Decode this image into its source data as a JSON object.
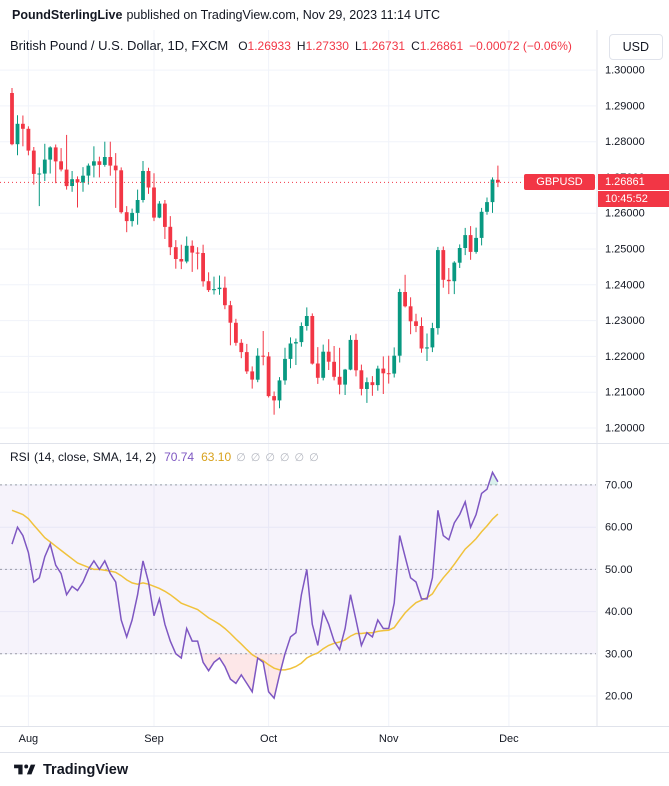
{
  "header": {
    "publisher": "PoundSterlingLive",
    "suffix": "published on TradingView.com, Nov 29, 2023 11:14 UTC"
  },
  "symbol_bar": {
    "title": "British Pound / U.S. Dollar, 1D, FXCM",
    "ohlc": {
      "o_label": "O",
      "o_value": "1.26933",
      "h_label": "H",
      "h_value": "1.27330",
      "l_label": "L",
      "l_value": "1.26731",
      "c_label": "C",
      "c_value": "1.26861",
      "change": "−0.00072 (−0.06%)"
    },
    "currency_button": "USD"
  },
  "price_axis": {
    "symbol_tag": "GBPUSD",
    "current_price": "1.26861",
    "countdown": "10:45:52"
  },
  "rsi_bar": {
    "title": "RSI",
    "params": "(14, close, SMA, 14, 2)",
    "rsi_value": "70.74",
    "ma_value": "63.10",
    "empty_values": [
      "∅",
      "∅",
      "∅",
      "∅",
      "∅",
      "∅"
    ]
  },
  "time_axis": {
    "labels": [
      {
        "text": "Aug",
        "i": 3
      },
      {
        "text": "Sep",
        "i": 26
      },
      {
        "text": "Oct",
        "i": 47
      },
      {
        "text": "Nov",
        "i": 69
      },
      {
        "text": "Dec",
        "i": 91
      }
    ]
  },
  "footer": {
    "brand": "TradingView"
  },
  "colors": {
    "up": "#089981",
    "down": "#f23645",
    "rsi": "#7e57c2",
    "rsi_ma": "#f0c23c",
    "band_line": "#787b86",
    "grid": "#f0f3fa",
    "axis_border": "#e0e3eb",
    "text": "#131722"
  },
  "chart_data": [
    {
      "type": "candlestick",
      "title": "British Pound / U.S. Dollar, 1D, FXCM",
      "timeframe": "1D",
      "exchange": "FXCM",
      "current_price": 1.26861,
      "ylim": [
        1.1958,
        1.3112
      ],
      "yticks": [
        1.3,
        1.29,
        1.28,
        1.27,
        1.26,
        1.25,
        1.24,
        1.23,
        1.22,
        1.21,
        1.2
      ],
      "ytick_labels": [
        "1.30000",
        "1.29000",
        "1.28000",
        "1.27000",
        "1.26000",
        "1.25000",
        "1.24000",
        "1.23000",
        "1.22000",
        "1.21000",
        "1.20000"
      ],
      "x": [
        "2023-07-27",
        "2023-07-28",
        "2023-07-31",
        "2023-08-01",
        "2023-08-02",
        "2023-08-03",
        "2023-08-04",
        "2023-08-07",
        "2023-08-08",
        "2023-08-09",
        "2023-08-10",
        "2023-08-11",
        "2023-08-14",
        "2023-08-15",
        "2023-08-16",
        "2023-08-17",
        "2023-08-18",
        "2023-08-21",
        "2023-08-22",
        "2023-08-23",
        "2023-08-24",
        "2023-08-25",
        "2023-08-28",
        "2023-08-29",
        "2023-08-30",
        "2023-08-31",
        "2023-09-01",
        "2023-09-04",
        "2023-09-05",
        "2023-09-06",
        "2023-09-07",
        "2023-09-08",
        "2023-09-11",
        "2023-09-12",
        "2023-09-13",
        "2023-09-14",
        "2023-09-15",
        "2023-09-18",
        "2023-09-19",
        "2023-09-20",
        "2023-09-21",
        "2023-09-22",
        "2023-09-25",
        "2023-09-26",
        "2023-09-27",
        "2023-09-28",
        "2023-09-29",
        "2023-10-02",
        "2023-10-03",
        "2023-10-04",
        "2023-10-05",
        "2023-10-06",
        "2023-10-09",
        "2023-10-10",
        "2023-10-11",
        "2023-10-12",
        "2023-10-13",
        "2023-10-16",
        "2023-10-17",
        "2023-10-18",
        "2023-10-19",
        "2023-10-20",
        "2023-10-23",
        "2023-10-24",
        "2023-10-25",
        "2023-10-26",
        "2023-10-27",
        "2023-10-30",
        "2023-10-31",
        "2023-11-01",
        "2023-11-02",
        "2023-11-03",
        "2023-11-06",
        "2023-11-07",
        "2023-11-08",
        "2023-11-09",
        "2023-11-10",
        "2023-11-13",
        "2023-11-14",
        "2023-11-15",
        "2023-11-16",
        "2023-11-17",
        "2023-11-20",
        "2023-11-21",
        "2023-11-22",
        "2023-11-23",
        "2023-11-24",
        "2023-11-27",
        "2023-11-28",
        "2023-11-29"
      ],
      "open": [
        1.2936,
        1.2793,
        1.285,
        1.2836,
        1.2775,
        1.271,
        1.2711,
        1.275,
        1.2784,
        1.2745,
        1.2722,
        1.2676,
        1.2695,
        1.2686,
        1.2705,
        1.2733,
        1.2745,
        1.2735,
        1.2757,
        1.2733,
        1.272,
        1.2603,
        1.2578,
        1.2601,
        1.2637,
        1.2718,
        1.2672,
        1.2588,
        1.2627,
        1.2562,
        1.2505,
        1.2472,
        1.2465,
        1.2509,
        1.249,
        1.2489,
        1.241,
        1.2385,
        1.2388,
        1.2392,
        1.2343,
        1.2294,
        1.2238,
        1.2212,
        1.2158,
        1.2135,
        1.2202,
        1.22,
        1.2089,
        1.2077,
        1.2133,
        1.2193,
        1.2236,
        1.224,
        1.2285,
        1.2313,
        1.218,
        1.214,
        1.2213,
        1.2185,
        1.2143,
        1.2121,
        1.2163,
        1.2246,
        1.2161,
        1.2109,
        1.2128,
        1.212,
        1.2166,
        1.2153,
        1.2152,
        1.2202,
        1.238,
        1.234,
        1.2298,
        1.2285,
        1.2222,
        1.2225,
        1.2279,
        1.2497,
        1.2414,
        1.241,
        1.2462,
        1.2503,
        1.2539,
        1.2492,
        1.2531,
        1.2604,
        1.2631,
        1.26933
      ],
      "high": [
        1.295,
        1.2874,
        1.2873,
        1.2843,
        1.2785,
        1.2728,
        1.2794,
        1.2787,
        1.2792,
        1.2782,
        1.2819,
        1.2718,
        1.2703,
        1.2729,
        1.2739,
        1.2787,
        1.2758,
        1.28,
        1.28,
        1.2768,
        1.2728,
        1.262,
        1.2613,
        1.2666,
        1.2746,
        1.2727,
        1.2712,
        1.2634,
        1.2637,
        1.2592,
        1.2525,
        1.2512,
        1.2535,
        1.2524,
        1.2505,
        1.2512,
        1.2435,
        1.2423,
        1.2426,
        1.2423,
        1.2355,
        1.2305,
        1.2248,
        1.2235,
        1.2172,
        1.2223,
        1.2271,
        1.2212,
        1.2102,
        1.2142,
        1.2224,
        1.2253,
        1.225,
        1.2295,
        1.2337,
        1.232,
        1.2226,
        1.2233,
        1.2248,
        1.2229,
        1.2224,
        1.2165,
        1.2259,
        1.2263,
        1.2177,
        1.2141,
        1.2145,
        1.2174,
        1.22,
        1.2202,
        1.2225,
        1.2389,
        1.2428,
        1.2365,
        1.2319,
        1.2309,
        1.2264,
        1.2294,
        1.2506,
        1.2507,
        1.2447,
        1.2466,
        1.2513,
        1.2559,
        1.2564,
        1.256,
        1.2615,
        1.2644,
        1.27,
        1.2733
      ],
      "low": [
        1.279,
        1.2762,
        1.2787,
        1.2762,
        1.268,
        1.262,
        1.269,
        1.2711,
        1.2684,
        1.2717,
        1.2666,
        1.266,
        1.2616,
        1.266,
        1.268,
        1.27,
        1.27,
        1.273,
        1.2705,
        1.2615,
        1.2599,
        1.2547,
        1.2563,
        1.2568,
        1.263,
        1.2654,
        1.2578,
        1.2586,
        1.2528,
        1.2483,
        1.2445,
        1.2444,
        1.246,
        1.2436,
        1.2443,
        1.2395,
        1.238,
        1.2373,
        1.2372,
        1.2332,
        1.2231,
        1.223,
        1.2195,
        1.2151,
        1.211,
        1.2128,
        1.2175,
        1.2085,
        1.2037,
        1.2055,
        1.2121,
        1.2167,
        1.2176,
        1.2227,
        1.2272,
        1.2177,
        1.2123,
        1.2133,
        1.2162,
        1.2133,
        1.2094,
        1.2092,
        1.2161,
        1.2144,
        1.2091,
        1.207,
        1.209,
        1.2104,
        1.2095,
        1.2124,
        1.2141,
        1.2183,
        1.2337,
        1.2262,
        1.2268,
        1.221,
        1.2187,
        1.2212,
        1.2261,
        1.2392,
        1.2374,
        1.2374,
        1.2447,
        1.2483,
        1.247,
        1.2487,
        1.251,
        1.2596,
        1.2601,
        1.26731
      ],
      "close": [
        1.2793,
        1.285,
        1.2836,
        1.2775,
        1.271,
        1.2711,
        1.275,
        1.2784,
        1.2745,
        1.2722,
        1.2676,
        1.2695,
        1.2686,
        1.2705,
        1.2733,
        1.2745,
        1.2735,
        1.2757,
        1.2733,
        1.272,
        1.2603,
        1.2578,
        1.2601,
        1.2637,
        1.2718,
        1.2672,
        1.2588,
        1.2627,
        1.2562,
        1.2505,
        1.2472,
        1.2465,
        1.2509,
        1.249,
        1.2489,
        1.241,
        1.2385,
        1.2388,
        1.2392,
        1.2343,
        1.2294,
        1.2238,
        1.2212,
        1.2158,
        1.2135,
        1.2202,
        1.22,
        1.2089,
        1.2077,
        1.2133,
        1.2193,
        1.2236,
        1.224,
        1.2285,
        1.2313,
        1.218,
        1.214,
        1.2213,
        1.2185,
        1.2143,
        1.2121,
        1.2163,
        1.2246,
        1.2161,
        1.2109,
        1.2128,
        1.212,
        1.2166,
        1.2153,
        1.2152,
        1.2202,
        1.238,
        1.234,
        1.2298,
        1.2285,
        1.2222,
        1.2225,
        1.2279,
        1.2497,
        1.2414,
        1.241,
        1.2462,
        1.2503,
        1.2539,
        1.2492,
        1.2531,
        1.2604,
        1.2631,
        1.2694,
        1.26861
      ]
    },
    {
      "type": "line",
      "title": "RSI (14, close, SMA, 14, 2)",
      "ylim": [
        12.9,
        79.7
      ],
      "yticks": [
        70,
        60,
        50,
        40,
        30,
        20
      ],
      "ytick_labels": [
        "70.00",
        "60.00",
        "50.00",
        "40.00",
        "30.00",
        "20.00"
      ],
      "bands": [
        70,
        50,
        30
      ],
      "series": [
        {
          "name": "RSI",
          "color": "#7e57c2",
          "values": [
            56,
            60,
            58,
            54,
            47,
            48,
            53,
            56,
            51,
            49,
            44,
            46,
            45,
            47,
            50,
            52,
            50,
            52,
            49,
            47,
            38,
            34,
            38,
            44,
            52,
            47,
            39,
            43,
            37,
            33,
            30,
            29,
            36,
            33,
            33,
            28,
            26,
            28,
            29,
            27,
            24,
            23,
            25,
            23,
            21,
            29,
            28,
            21,
            19.5,
            25,
            30,
            34,
            35,
            44,
            50,
            37,
            32,
            40,
            37,
            33,
            31,
            36,
            44,
            38,
            32,
            35,
            34,
            38,
            36,
            36,
            42,
            58,
            53,
            48,
            47,
            43,
            43,
            48,
            64,
            58,
            57,
            61,
            63,
            66,
            60,
            63,
            68,
            69,
            73,
            70.74
          ]
        },
        {
          "name": "RSI-based MA",
          "color": "#f0c23c",
          "values": [
            64,
            63.5,
            63,
            62,
            60.5,
            59,
            57.5,
            56.5,
            55.5,
            54.5,
            53.5,
            52.5,
            51.5,
            51,
            50.5,
            50,
            50,
            49.8,
            49.6,
            49.3,
            48.5,
            47.5,
            46.8,
            46.5,
            46.8,
            46.5,
            46,
            45.5,
            44.8,
            44,
            43,
            42,
            41.5,
            41,
            40.5,
            39.5,
            38.5,
            37.8,
            37,
            36,
            34.8,
            33.5,
            32.3,
            31,
            29.8,
            29,
            28.4,
            27.4,
            26.6,
            26.2,
            26.2,
            26.5,
            27,
            27.8,
            29,
            29.7,
            30.2,
            31.2,
            32,
            32.5,
            32.8,
            33.3,
            34.2,
            34.8,
            34.8,
            35,
            35,
            35.3,
            35.5,
            35.6,
            36.2,
            38,
            39.7,
            41,
            42.1,
            42.7,
            43.3,
            44.2,
            46.3,
            48,
            49.5,
            51.2,
            53,
            54.8,
            56,
            57.3,
            58.9,
            60.3,
            61.9,
            63.1
          ]
        }
      ]
    }
  ]
}
